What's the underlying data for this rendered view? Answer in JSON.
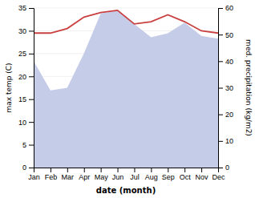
{
  "chart_data": {
    "type": "line",
    "categories": [
      "Jan",
      "Feb",
      "Mar",
      "Apr",
      "May",
      "Jun",
      "Jul",
      "Aug",
      "Sep",
      "Oct",
      "Nov",
      "Dec"
    ],
    "xlabel": "date (month)",
    "ylabel": "max temp (C)",
    "y2label": "med. precipitation (kg/m2)",
    "series": [
      {
        "type": "area",
        "axis": "y2",
        "color": "#c5cce8",
        "values": [
          40.0,
          29.0,
          30.0,
          43.0,
          58.0,
          59.0,
          54.0,
          49.0,
          50.5,
          54.5,
          49.5,
          48.5
        ]
      },
      {
        "type": "line",
        "color": "#c94040",
        "values": [
          29.5,
          29.5,
          30.5,
          33.0,
          34.0,
          34.5,
          31.5,
          32.0,
          33.5,
          32.0,
          30.0,
          29.5
        ]
      }
    ],
    "ylim": [
      0,
      35
    ],
    "yticks": [
      0,
      5,
      10,
      15,
      20,
      25,
      30,
      35
    ],
    "y2lim": [
      0,
      60
    ],
    "y2ticks": [
      0,
      10,
      20,
      30,
      40,
      50,
      60
    ],
    "grid": true
  }
}
